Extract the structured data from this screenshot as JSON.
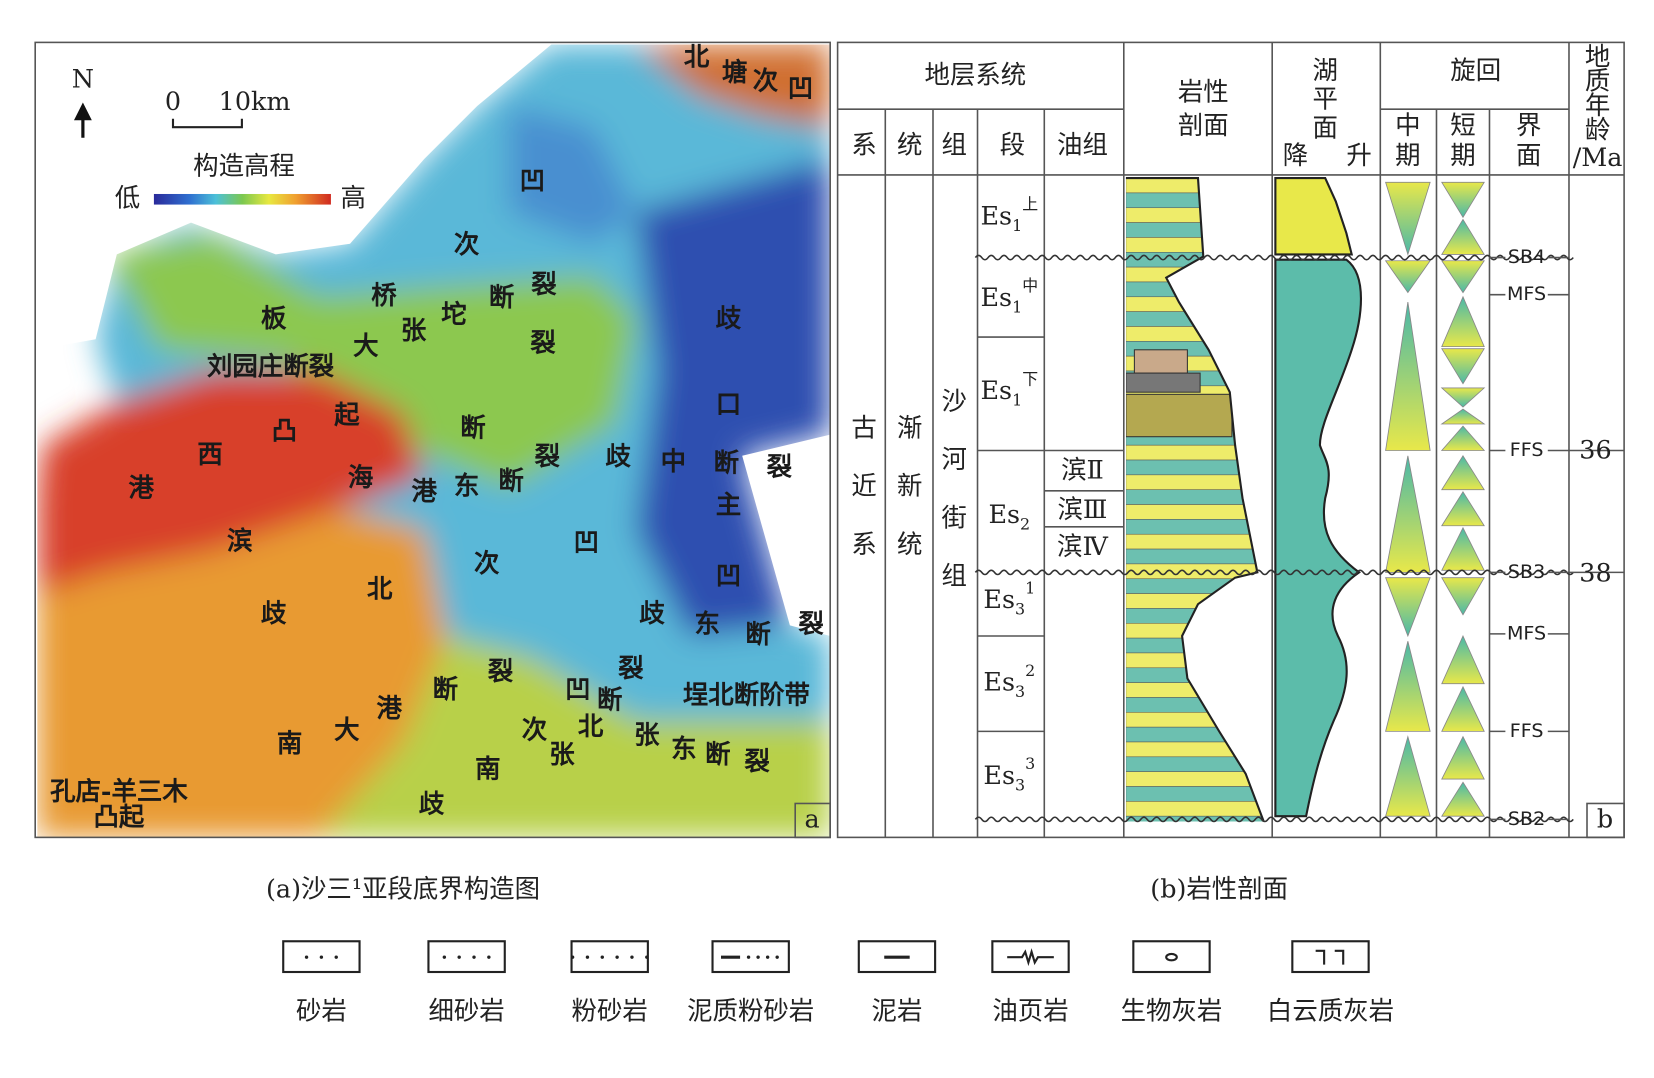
{
  "map": {
    "north": "N",
    "scale": [
      "0",
      "10km"
    ],
    "elevation_title": "构造高程",
    "low": "低",
    "high": "高",
    "labels": [
      "北",
      "塘",
      "次",
      "凹",
      "凹",
      "次",
      "桥",
      "断",
      "裂",
      "张",
      "坨",
      "板",
      "大",
      "裂",
      "刘园庄断裂",
      "歧",
      "起",
      "凸",
      "断",
      "口",
      "西",
      "港",
      "海",
      "裂",
      "歧",
      "中",
      "断",
      "裂",
      "港",
      "东",
      "断",
      "主",
      "滨",
      "凹",
      "次",
      "凹",
      "北",
      "歧",
      "歧",
      "东",
      "断",
      "裂",
      "裂",
      "裂",
      "断",
      "凹",
      "断",
      "埕北断阶带",
      "港",
      "北",
      "次",
      "张",
      "东",
      "断",
      "裂",
      "大",
      "南",
      "张",
      "南",
      "孔店-羊三木",
      "凸起",
      "歧"
    ],
    "panel": "a"
  },
  "column": {
    "header": "地层系统",
    "lithology_header": [
      "岩性",
      "剖面"
    ],
    "lake_header": [
      "湖",
      "平",
      "面"
    ],
    "fall": "降",
    "rise": "升",
    "cycle_header": "旋回",
    "age_header": [
      "地",
      "质",
      "年",
      "龄",
      "/Ma"
    ],
    "subheaders": [
      "系",
      "统",
      "组",
      "段",
      "油组"
    ],
    "cycle_subheaders": [
      [
        "中",
        "期"
      ],
      [
        "短",
        "期"
      ],
      [
        "界",
        "面"
      ]
    ],
    "system": [
      "古",
      "近",
      "系"
    ],
    "series": [
      "渐",
      "新",
      "统"
    ],
    "formation": [
      "沙",
      "河",
      "街",
      "组"
    ],
    "members": [
      {
        "base": "Es",
        "sub": "1",
        "sup": "上"
      },
      {
        "base": "Es",
        "sub": "1",
        "sup": "中"
      },
      {
        "base": "Es",
        "sub": "1",
        "sup": "下"
      },
      {
        "base": "Es",
        "sub": "2"
      },
      {
        "base": "Es",
        "sub": "3",
        "sup": "1"
      },
      {
        "base": "Es",
        "sub": "3",
        "sup": "2"
      },
      {
        "base": "Es",
        "sub": "3",
        "sup": "3"
      }
    ],
    "oil_groups": [
      "滨Ⅱ",
      "滨Ⅲ",
      "滨Ⅳ"
    ],
    "surfaces": [
      "SB4",
      "MFS",
      "FFS",
      "SB3",
      "MFS",
      "FFS",
      "SB2"
    ],
    "ages": [
      36,
      38
    ],
    "panel": "b"
  },
  "captions": [
    "(a)沙三¹亚段底界构造图",
    "(b)岩性剖面"
  ],
  "legend": [
    "砂岩",
    "细砂岩",
    "粉砂岩",
    "泥质粉砂岩",
    "泥岩",
    "油页岩",
    "生物灰岩",
    "白云质灰岩"
  ]
}
